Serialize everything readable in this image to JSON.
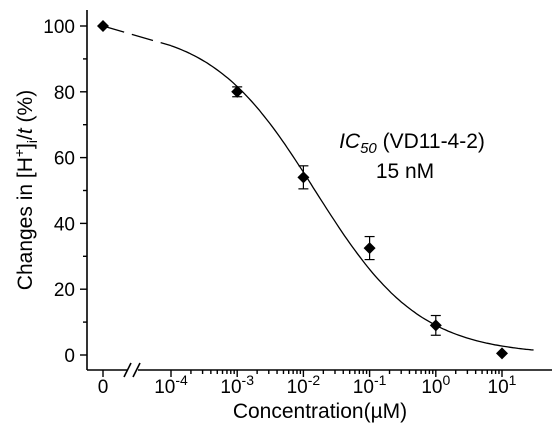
{
  "chart_data": {
    "type": "scatter",
    "xlabel": "Concentration",
    "xlabel_unit": "(µM)",
    "ylabel_prefix": "Changes in [H",
    "ylabel_sup": "+",
    "ylabel_mid": "]",
    "ylabel_sub": "i",
    "ylabel_slash": "/",
    "ylabel_t": "t",
    "ylabel_suffix": " (%)",
    "x_scale": "log with broken axis (0 placed left of break)",
    "x_ticks": [
      {
        "value": 0,
        "label": "0"
      },
      {
        "value": 0.0001,
        "base": "10",
        "exp": "-4"
      },
      {
        "value": 0.001,
        "base": "10",
        "exp": "-3"
      },
      {
        "value": 0.01,
        "base": "10",
        "exp": "-2"
      },
      {
        "value": 0.1,
        "base": "10",
        "exp": "-1"
      },
      {
        "value": 1,
        "base": "10",
        "exp": "0"
      },
      {
        "value": 10,
        "base": "10",
        "exp": "1"
      }
    ],
    "ylim": [
      0,
      100
    ],
    "y_ticks": [
      0,
      20,
      40,
      60,
      80,
      100
    ],
    "grid": false,
    "points": [
      {
        "x": 0,
        "y": 100,
        "err": 0
      },
      {
        "x": 0.001,
        "y": 80,
        "err": 1.5
      },
      {
        "x": 0.01,
        "y": 54,
        "err": 3.5
      },
      {
        "x": 0.1,
        "y": 32.5,
        "err": 3.5
      },
      {
        "x": 1,
        "y": 9,
        "err": 3
      },
      {
        "x": 10,
        "y": 0.5,
        "err": 0
      }
    ],
    "fit": {
      "model": "logistic",
      "top": 100,
      "bottom": 0,
      "ic50": 0.015,
      "hill": 0.55
    },
    "annotation": {
      "ic_main": "IC",
      "ic_sub": "50",
      "compound": " (VD11-4-2)",
      "value": "15 nM"
    }
  }
}
